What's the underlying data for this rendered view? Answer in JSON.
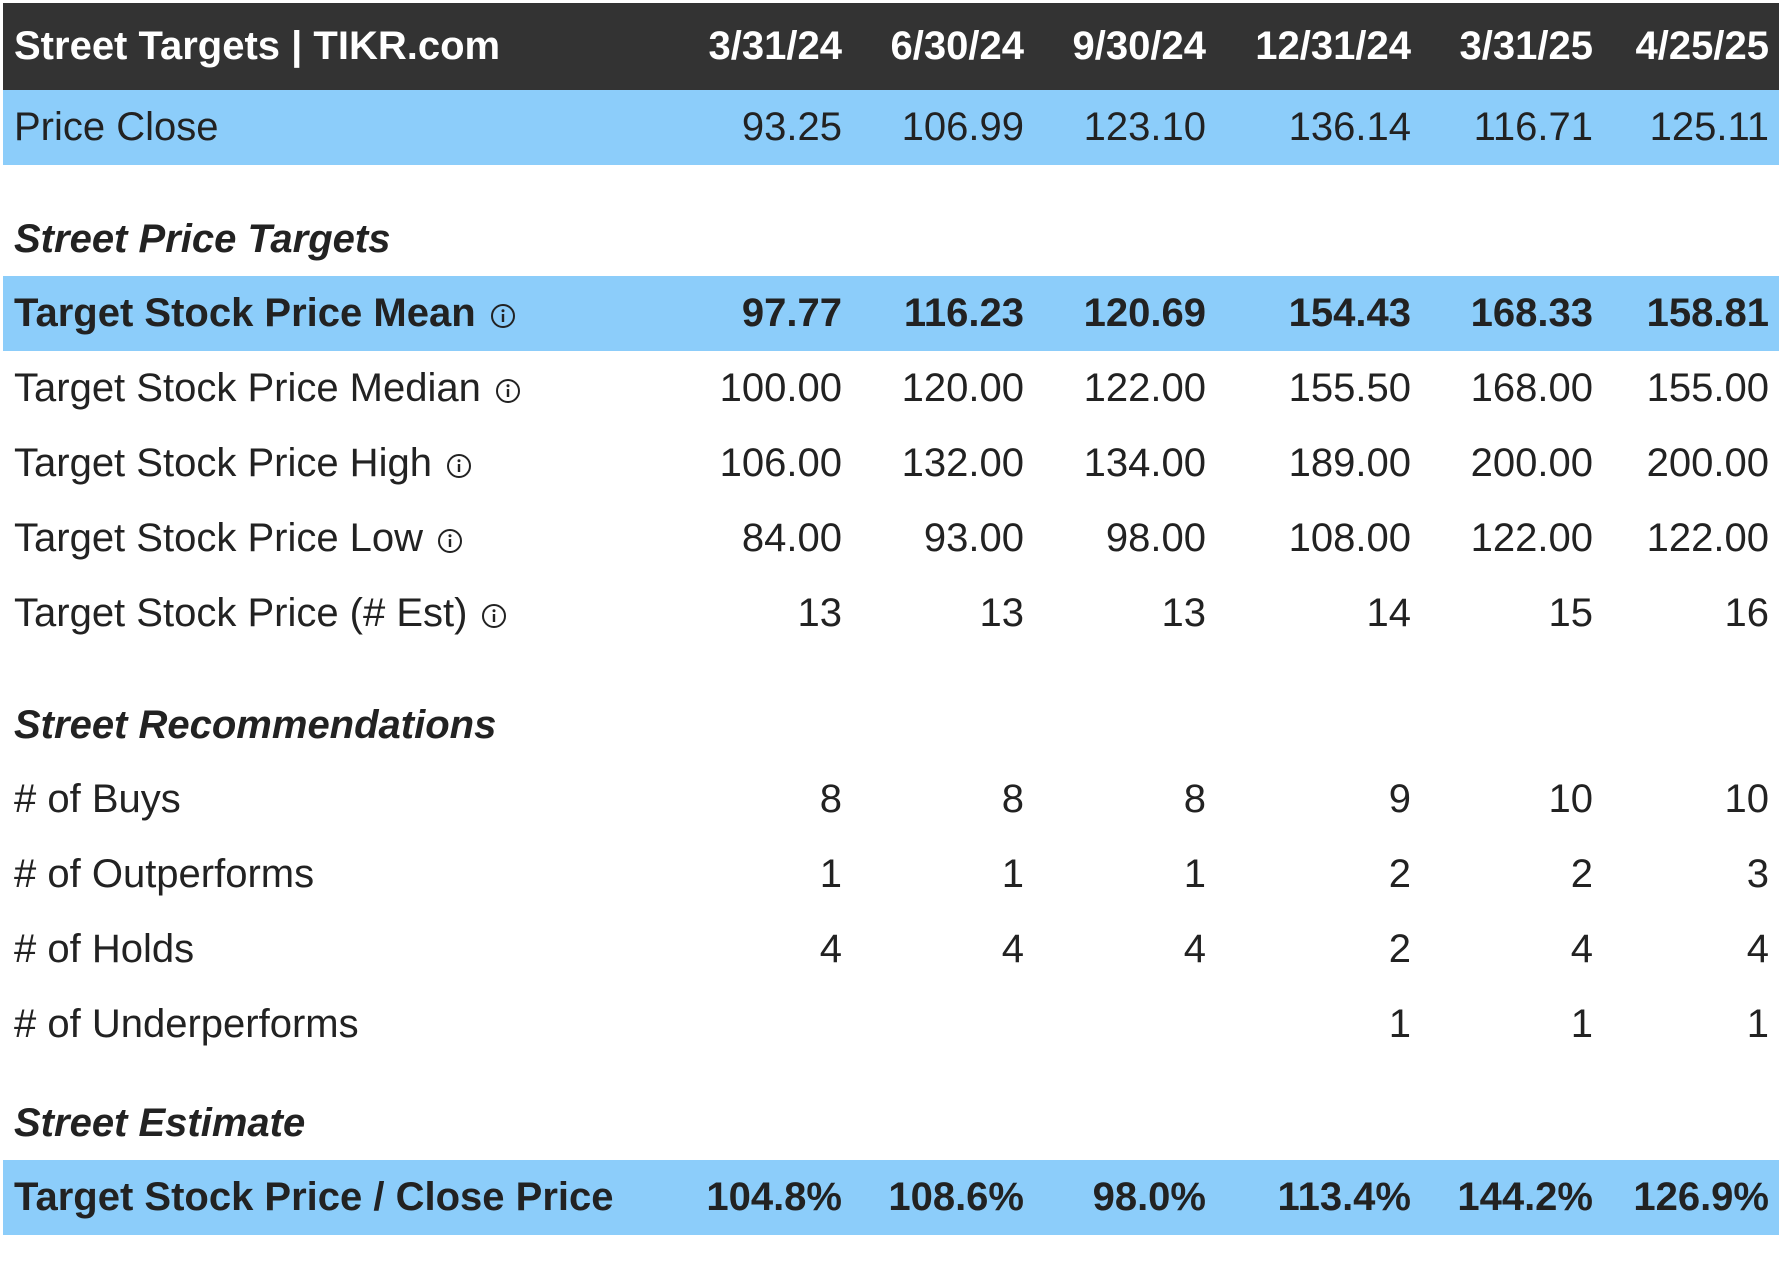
{
  "header": {
    "title": "Street Targets | TIKR.com",
    "dates": [
      "3/31/24",
      "6/30/24",
      "9/30/24",
      "12/31/24",
      "3/31/25",
      "4/25/25"
    ]
  },
  "price_close": {
    "label": "Price Close",
    "values": [
      "93.25",
      "106.99",
      "123.10",
      "136.14",
      "116.71",
      "125.11"
    ]
  },
  "sections": {
    "price_targets": "Street Price Targets",
    "recommendations": "Street Recommendations",
    "estimate": "Street Estimate"
  },
  "price_targets": [
    {
      "label": "Target Stock Price Mean",
      "values": [
        "97.77",
        "116.23",
        "120.69",
        "154.43",
        "168.33",
        "158.81"
      ]
    },
    {
      "label": "Target Stock Price Median",
      "values": [
        "100.00",
        "120.00",
        "122.00",
        "155.50",
        "168.00",
        "155.00"
      ]
    },
    {
      "label": "Target Stock Price High",
      "values": [
        "106.00",
        "132.00",
        "134.00",
        "189.00",
        "200.00",
        "200.00"
      ]
    },
    {
      "label": "Target Stock Price Low",
      "values": [
        "84.00",
        "93.00",
        "98.00",
        "108.00",
        "122.00",
        "122.00"
      ]
    },
    {
      "label": "Target Stock Price (# Est)",
      "values": [
        "13",
        "13",
        "13",
        "14",
        "15",
        "16"
      ]
    }
  ],
  "recommendations": [
    {
      "label": "# of Buys",
      "values": [
        "8",
        "8",
        "8",
        "9",
        "10",
        "10"
      ]
    },
    {
      "label": "# of Outperforms",
      "values": [
        "1",
        "1",
        "1",
        "2",
        "2",
        "3"
      ]
    },
    {
      "label": "# of Holds",
      "values": [
        "4",
        "4",
        "4",
        "2",
        "4",
        "4"
      ]
    },
    {
      "label": "# of Underperforms",
      "values": [
        "",
        "",
        "",
        "1",
        "1",
        "1"
      ]
    }
  ],
  "estimate": {
    "label": "Target Stock Price / Close Price",
    "values": [
      "104.8%",
      "108.6%",
      "98.0%",
      "113.4%",
      "144.2%",
      "126.9%"
    ]
  },
  "colors": {
    "header_bg": "#333333",
    "highlight_bg": "#8ccdfa",
    "text": "#222222"
  },
  "icons": {
    "info": "info-circle-icon"
  }
}
